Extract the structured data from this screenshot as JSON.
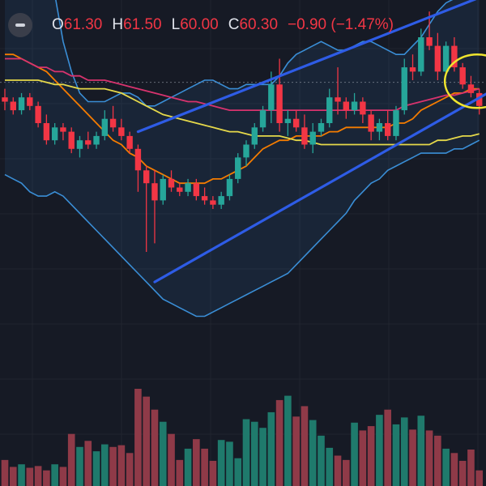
{
  "legend": {
    "collapse_icon": "minus-icon",
    "open_label": "O",
    "open": "61.30",
    "high_label": "H",
    "high": "61.50",
    "low_label": "L",
    "low": "60.00",
    "close_label": "C",
    "close": "60.30",
    "change": "−0.90 (−1.47%)"
  },
  "colors": {
    "background": "#161a25",
    "up": "#26a69a",
    "down": "#f23645",
    "up_volume": "#1f7a6c",
    "down_volume": "#8f3a48",
    "bollinger": "#3a8ed6",
    "ma_orange": "#f57c00",
    "ma_yellow": "#e6d94a",
    "ma_pink": "#d8336e",
    "trendline": "#2e5ce6",
    "highlight_circle": "#f0e52e"
  },
  "chart_data": {
    "type": "candlestick",
    "candles": [
      [
        62.6,
        62.8,
        62.3,
        62.5
      ],
      [
        62.5,
        62.6,
        62.2,
        62.3
      ],
      [
        62.3,
        62.7,
        62.2,
        62.6
      ],
      [
        62.6,
        62.7,
        62.3,
        62.4
      ],
      [
        62.4,
        62.5,
        61.9,
        62.0
      ],
      [
        62.0,
        62.2,
        61.5,
        61.6
      ],
      [
        61.6,
        62.0,
        61.5,
        61.9
      ],
      [
        61.9,
        62.0,
        61.6,
        61.8
      ],
      [
        61.8,
        61.9,
        61.3,
        61.4
      ],
      [
        61.4,
        61.7,
        61.2,
        61.6
      ],
      [
        61.6,
        61.8,
        61.4,
        61.5
      ],
      [
        61.5,
        61.8,
        61.4,
        61.7
      ],
      [
        61.7,
        62.3,
        61.6,
        62.1
      ],
      [
        62.1,
        62.4,
        61.8,
        61.9
      ],
      [
        61.9,
        62.1,
        61.6,
        61.7
      ],
      [
        61.7,
        61.8,
        61.3,
        61.4
      ],
      [
        61.4,
        61.5,
        60.4,
        60.9
      ],
      [
        60.9,
        61.0,
        59.0,
        60.6
      ],
      [
        60.6,
        60.9,
        59.2,
        60.2
      ],
      [
        60.2,
        60.8,
        60.1,
        60.7
      ],
      [
        60.7,
        60.9,
        60.4,
        60.5
      ],
      [
        60.5,
        60.6,
        60.3,
        60.4
      ],
      [
        60.4,
        60.7,
        60.3,
        60.6
      ],
      [
        60.6,
        60.7,
        60.2,
        60.3
      ],
      [
        60.3,
        60.5,
        60.1,
        60.2
      ],
      [
        60.2,
        60.3,
        60.0,
        60.1
      ],
      [
        60.1,
        60.4,
        60.0,
        60.3
      ],
      [
        60.3,
        60.8,
        60.2,
        60.7
      ],
      [
        60.7,
        61.3,
        60.6,
        61.2
      ],
      [
        61.2,
        61.6,
        61.0,
        61.5
      ],
      [
        61.5,
        62.0,
        61.4,
        61.9
      ],
      [
        61.9,
        62.4,
        61.8,
        62.3
      ],
      [
        62.3,
        63.2,
        62.0,
        62.9
      ],
      [
        62.9,
        63.5,
        61.8,
        62.0
      ],
      [
        62.0,
        62.3,
        61.7,
        62.1
      ],
      [
        62.1,
        62.3,
        61.8,
        61.9
      ],
      [
        61.9,
        62.2,
        61.4,
        61.5
      ],
      [
        61.5,
        62.0,
        61.3,
        61.8
      ],
      [
        61.8,
        62.1,
        61.7,
        62.0
      ],
      [
        62.0,
        62.8,
        61.9,
        62.6
      ],
      [
        62.6,
        63.3,
        62.2,
        62.5
      ],
      [
        62.5,
        62.6,
        62.1,
        62.3
      ],
      [
        62.3,
        62.7,
        62.2,
        62.5
      ],
      [
        62.5,
        62.6,
        62.0,
        62.2
      ],
      [
        62.2,
        62.3,
        61.6,
        61.8
      ],
      [
        61.8,
        62.1,
        61.6,
        62.0
      ],
      [
        62.0,
        62.3,
        61.6,
        61.7
      ],
      [
        61.7,
        62.4,
        61.6,
        62.3
      ],
      [
        62.3,
        63.5,
        62.2,
        63.3
      ],
      [
        63.3,
        63.6,
        63.0,
        63.2
      ],
      [
        63.2,
        64.2,
        63.1,
        64.0
      ],
      [
        64.0,
        64.6,
        63.7,
        63.8
      ],
      [
        63.8,
        64.1,
        63.0,
        63.2
      ],
      [
        63.2,
        63.9,
        63.1,
        63.8
      ],
      [
        63.8,
        64.0,
        63.2,
        63.3
      ],
      [
        63.3,
        63.4,
        62.8,
        62.9
      ],
      [
        62.9,
        63.1,
        62.6,
        62.7
      ],
      [
        62.7,
        62.8,
        62.2,
        62.4
      ]
    ],
    "volumes": [
      30,
      22,
      25,
      21,
      23,
      18,
      25,
      22,
      60,
      45,
      52,
      40,
      48,
      45,
      47,
      38,
      112,
      103,
      88,
      74,
      60,
      30,
      43,
      54,
      43,
      29,
      53,
      51,
      32,
      77,
      74,
      67,
      85,
      99,
      104,
      80,
      92,
      76,
      58,
      44,
      35,
      30,
      73,
      64,
      69,
      82,
      88,
      71,
      79,
      65,
      81,
      64,
      58,
      43,
      38,
      29,
      42,
      18
    ],
    "bollinger_upper": [
      69.0,
      68.8,
      68.4,
      67.9,
      67.2,
      66.2,
      65.0,
      63.9,
      63.2,
      62.7,
      62.5,
      62.5,
      62.5,
      62.6,
      62.7,
      62.7,
      62.6,
      62.4,
      62.4,
      62.5,
      62.6,
      62.7,
      62.8,
      62.9,
      63.0,
      63.0,
      62.9,
      62.8,
      62.8,
      62.9,
      62.9,
      62.9,
      62.9,
      63.1,
      63.4,
      63.6,
      63.7,
      63.8,
      63.9,
      63.8,
      63.7,
      63.7,
      63.8,
      63.9,
      63.9,
      63.8,
      63.7,
      63.6,
      63.6,
      63.8,
      64.0,
      64.3,
      64.6,
      64.8,
      64.9,
      65.0,
      65.1,
      65.2
    ],
    "bollinger_lower": [
      60.8,
      60.7,
      60.6,
      60.4,
      60.3,
      60.3,
      60.4,
      60.3,
      60.1,
      59.9,
      59.7,
      59.5,
      59.3,
      59.1,
      58.9,
      58.7,
      58.5,
      58.3,
      58.1,
      57.9,
      57.8,
      57.7,
      57.6,
      57.5,
      57.5,
      57.6,
      57.7,
      57.8,
      57.9,
      58.0,
      58.1,
      58.2,
      58.3,
      58.4,
      58.5,
      58.7,
      58.9,
      59.1,
      59.3,
      59.5,
      59.7,
      59.9,
      60.2,
      60.4,
      60.6,
      60.7,
      60.9,
      61.0,
      61.1,
      61.2,
      61.3,
      61.3,
      61.3,
      61.3,
      61.4,
      61.4,
      61.5,
      61.6
    ],
    "ma_orange": [
      63.6,
      63.6,
      63.5,
      63.4,
      63.3,
      63.2,
      63.0,
      62.8,
      62.6,
      62.4,
      62.2,
      62.0,
      61.8,
      61.6,
      61.5,
      61.3,
      61.2,
      61.0,
      60.9,
      60.8,
      60.7,
      60.6,
      60.6,
      60.6,
      60.6,
      60.7,
      60.7,
      60.8,
      60.9,
      61.0,
      61.2,
      61.4,
      61.5,
      61.6,
      61.6,
      61.7,
      61.7,
      61.7,
      61.7,
      61.8,
      61.8,
      61.9,
      61.9,
      61.9,
      61.9,
      61.9,
      61.9,
      62.0,
      62.0,
      62.1,
      62.3,
      62.4,
      62.5,
      62.6,
      62.7,
      62.7,
      62.8,
      62.8
    ],
    "ma_yellow": [
      63.0,
      63.0,
      63.0,
      63.0,
      63.0,
      62.95,
      62.9,
      62.9,
      62.85,
      62.8,
      62.8,
      62.8,
      62.8,
      62.75,
      62.7,
      62.6,
      62.5,
      62.4,
      62.3,
      62.2,
      62.15,
      62.1,
      62.05,
      62.0,
      61.95,
      61.9,
      61.85,
      61.8,
      61.8,
      61.75,
      61.7,
      61.7,
      61.7,
      61.7,
      61.65,
      61.6,
      61.6,
      61.55,
      61.5,
      61.5,
      61.5,
      61.5,
      61.5,
      61.5,
      61.5,
      61.5,
      61.5,
      61.5,
      61.5,
      61.5,
      61.5,
      61.5,
      61.6,
      61.6,
      61.65,
      61.7,
      61.7,
      61.75
    ],
    "ma_pink": [
      63.5,
      63.5,
      63.5,
      63.4,
      63.3,
      63.3,
      63.2,
      63.2,
      63.1,
      63.1,
      63.0,
      63.0,
      63.0,
      62.95,
      62.9,
      62.85,
      62.8,
      62.75,
      62.7,
      62.65,
      62.6,
      62.55,
      62.5,
      62.5,
      62.45,
      62.4,
      62.35,
      62.3,
      62.3,
      62.3,
      62.3,
      62.3,
      62.3,
      62.3,
      62.3,
      62.3,
      62.3,
      62.3,
      62.3,
      62.3,
      62.3,
      62.3,
      62.3,
      62.3,
      62.3,
      62.3,
      62.3,
      62.3,
      62.4,
      62.45,
      62.5,
      62.55,
      62.6,
      62.65,
      62.65,
      62.7,
      62.75,
      62.8
    ],
    "price_range": [
      56,
      66
    ],
    "trend_channel": {
      "upper": [
        [
          16,
          61.8
        ],
        [
          58,
          65.0
        ]
      ],
      "lower": [
        [
          18,
          58.3
        ],
        [
          58,
          62.7
        ]
      ]
    },
    "highlight_circle_candle": 55,
    "dashed_reference_price": 62.95,
    "grid": true
  }
}
